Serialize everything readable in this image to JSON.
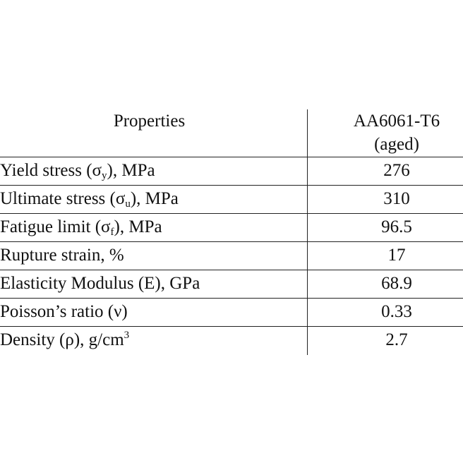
{
  "table": {
    "header": {
      "properties": "Properties",
      "material_line1": "AA6061-T6",
      "material_line2": "(aged)"
    },
    "rows": [
      {
        "label_before": "Yield stress (σ",
        "sub": "y",
        "label_after": "), MPa",
        "value": "276"
      },
      {
        "label_before": "Ultimate stress (σ",
        "sub": "u",
        "label_after": "), MPa",
        "value": "310"
      },
      {
        "label_before": "Fatigue limit (σ",
        "sub": "f",
        "label_after": "), MPa",
        "value": "96.5"
      },
      {
        "label": "Rupture strain, %",
        "value": "17"
      },
      {
        "label": "Elasticity Modulus (E), GPa",
        "value": "68.9"
      },
      {
        "label": "Poisson’s ratio (ν)",
        "value": "0.33"
      },
      {
        "label_before": "Density (ρ), g/cm",
        "sup": "3",
        "value": "2.7"
      }
    ]
  }
}
